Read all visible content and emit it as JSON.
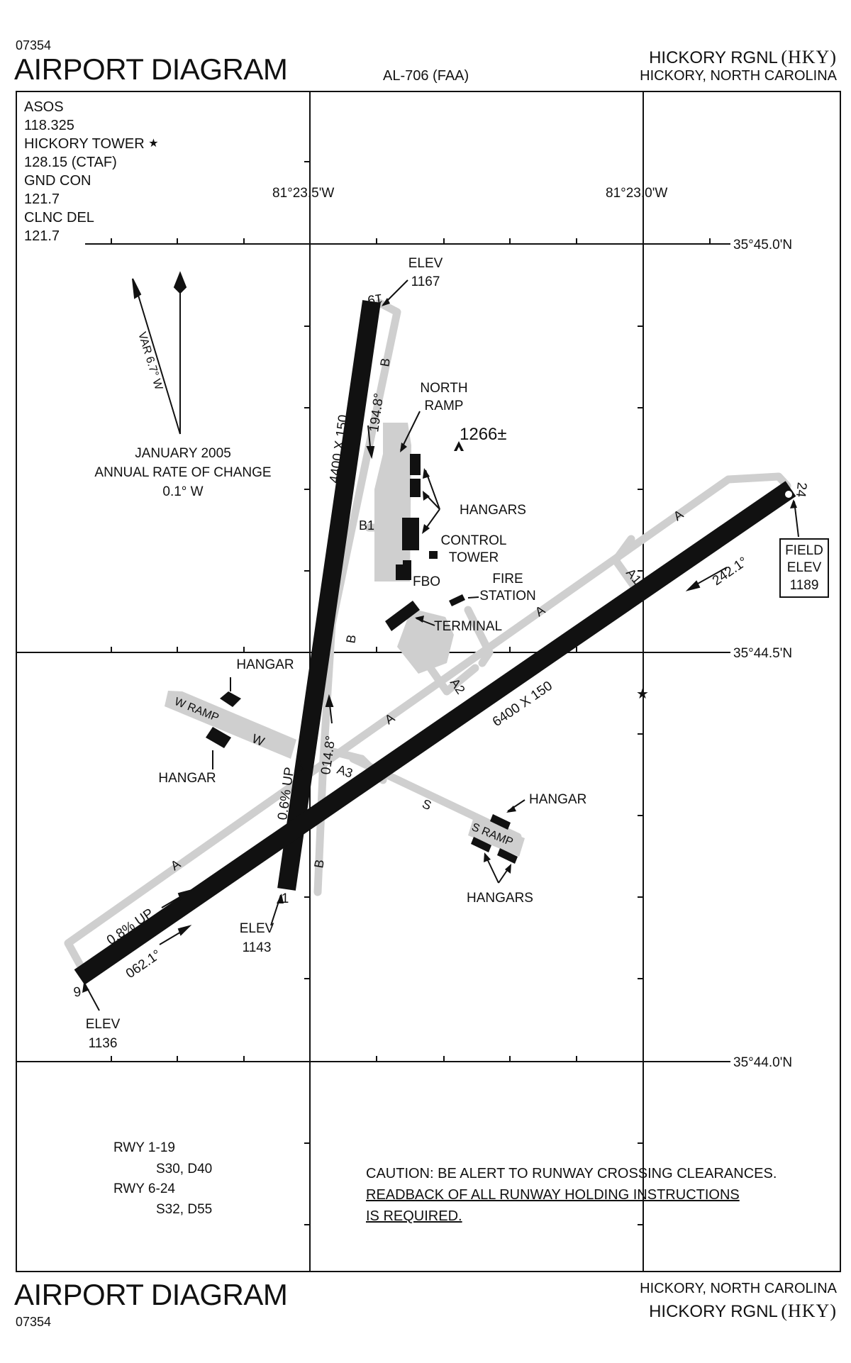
{
  "header": {
    "proc_id": "07354",
    "title": "AIRPORT DIAGRAM",
    "chart_code": "AL-706 (FAA)",
    "airport_name": "HICKORY RGNL",
    "airport_ident": "(HKY)",
    "location": "HICKORY, NORTH CAROLINA"
  },
  "footer": {
    "title": "AIRPORT DIAGRAM",
    "proc_id": "07354",
    "location": "HICKORY, NORTH CAROLINA",
    "airport_name": "HICKORY RGNL",
    "airport_ident": "(HKY)"
  },
  "frequencies": [
    "ASOS",
    "118.325",
    "HICKORY TOWER",
    "128.15 (CTAF)",
    "GND CON",
    "121.7",
    "CLNC DEL",
    "121.7"
  ],
  "tower_star": "★",
  "grid": {
    "lon_left": "81°23.5'W",
    "lon_right": "81°23.0'W",
    "lat_top": "35°45.0'N",
    "lat_mid": "35°44.5'N",
    "lat_bottom": "35°44.0'N"
  },
  "magvar": {
    "var_label": "VAR 6.7° W",
    "line1": "JANUARY 2005",
    "line2": "ANNUAL RATE OF CHANGE",
    "line3": "0.1° W"
  },
  "runways": {
    "rwy19_num": "19",
    "rwy1_num": "1",
    "rwy6_num": "6",
    "rwy24_num": "24",
    "rwy1_19_dims": "4400 X 150",
    "rwy6_24_dims": "6400 X 150",
    "hdg_194": "194.8°",
    "hdg_014": "014.8°",
    "hdg_242": "242.1°",
    "hdg_062": "062.1°",
    "grad_rwy1": "0.6% UP",
    "grad_rwy6": "0.8% UP"
  },
  "elevations": {
    "elev_word": "ELEV",
    "rwy19": "1167",
    "rwy1": "1143",
    "rwy6": "1136",
    "field_l1": "FIELD",
    "field_l2": "ELEV",
    "field_value": "1189"
  },
  "obstacle": "1266±",
  "taxiways": {
    "A": "A",
    "A1": "A1",
    "A2": "A2",
    "A3": "A3",
    "B": "B",
    "B1": "B1",
    "W": "W",
    "S": "S"
  },
  "labels": {
    "north_ramp_1": "NORTH",
    "north_ramp_2": "RAMP",
    "hangars": "HANGARS",
    "hangar": "HANGAR",
    "control_tower_1": "CONTROL",
    "control_tower_2": "TOWER",
    "fbo": "FBO",
    "fire_station_1": "FIRE",
    "fire_station_2": "STATION",
    "terminal": "TERMINAL",
    "w_ramp": "W RAMP",
    "s_ramp": "S RAMP"
  },
  "declared": {
    "rwy1_19": "RWY 1-19",
    "rwy1_19_strength": "S30, D40",
    "rwy6_24": "RWY 6-24",
    "rwy6_24_strength": "S32, D55"
  },
  "caution": {
    "line1": "CAUTION: BE ALERT TO RUNWAY CROSSING CLEARANCES.",
    "line2": "READBACK OF ALL RUNWAY HOLDING INSTRUCTIONS",
    "line3": "IS REQUIRED."
  },
  "colors": {
    "ink": "#111111",
    "pavement": "#cfcfcf"
  }
}
